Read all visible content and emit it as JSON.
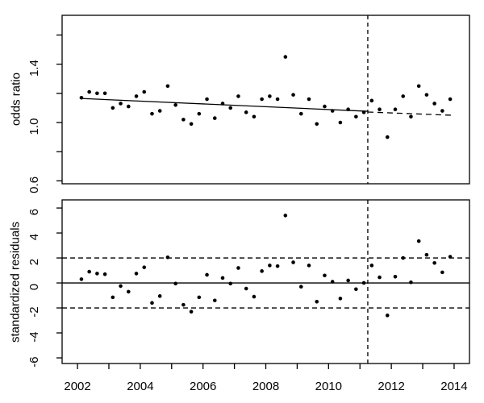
{
  "colors": {
    "foreground": "#000000",
    "background": "#ffffff"
  },
  "chart_data": [
    {
      "type": "scatter",
      "panel": "top",
      "title": "",
      "xlabel": "",
      "ylabel": "odds ratio",
      "xlim": [
        2001.51,
        2014.49
      ],
      "ylim": [
        0.58,
        1.735
      ],
      "grid": false,
      "point_style": "filled-black-dot",
      "x": [
        2002.125,
        2002.375,
        2002.625,
        2002.875,
        2003.125,
        2003.375,
        2003.625,
        2003.875,
        2004.125,
        2004.375,
        2004.625,
        2004.875,
        2005.125,
        2005.375,
        2005.625,
        2005.875,
        2006.125,
        2006.375,
        2006.625,
        2006.875,
        2007.125,
        2007.375,
        2007.625,
        2007.875,
        2008.125,
        2008.375,
        2008.625,
        2008.875,
        2009.125,
        2009.375,
        2009.625,
        2009.875,
        2010.125,
        2010.375,
        2010.625,
        2010.875,
        2011.125,
        2011.375,
        2011.625,
        2011.875,
        2012.125,
        2012.375,
        2012.625,
        2012.875,
        2013.125,
        2013.375,
        2013.625,
        2013.875
      ],
      "y": [
        1.17,
        1.21,
        1.2,
        1.2,
        1.1,
        1.13,
        1.11,
        1.18,
        1.21,
        1.06,
        1.08,
        1.25,
        1.12,
        1.02,
        0.99,
        1.06,
        1.16,
        1.03,
        1.13,
        1.1,
        1.18,
        1.07,
        1.04,
        1.16,
        1.18,
        1.16,
        1.45,
        1.19,
        1.06,
        1.16,
        0.99,
        1.11,
        1.08,
        1.0,
        1.09,
        1.04,
        1.07,
        1.15,
        1.09,
        0.9,
        1.09,
        1.18,
        1.04,
        1.25,
        1.19,
        1.13,
        1.08,
        1.16
      ],
      "yticks": [
        {
          "v": 0.6,
          "label": "0.6"
        },
        {
          "v": 0.8,
          "label": ""
        },
        {
          "v": 1.0,
          "label": "1.0"
        },
        {
          "v": 1.2,
          "label": ""
        },
        {
          "v": 1.4,
          "label": "1.4"
        },
        {
          "v": 1.6,
          "label": ""
        }
      ],
      "trend_solid": {
        "x": [
          2002.1,
          2011.25
        ],
        "y": [
          1.165,
          1.077
        ]
      },
      "trend_dashed": {
        "x": [
          2011.25,
          2013.9
        ],
        "y": [
          1.072,
          1.05
        ]
      },
      "vline_x": 2011.25
    },
    {
      "type": "scatter",
      "panel": "bottom",
      "title": "",
      "xlabel": "",
      "ylabel": "standardized residuals",
      "xlim": [
        2001.51,
        2014.49
      ],
      "ylim": [
        -6.45,
        6.65
      ],
      "grid": false,
      "point_style": "filled-black-dot",
      "x": [
        2002.125,
        2002.375,
        2002.625,
        2002.875,
        2003.125,
        2003.375,
        2003.625,
        2003.875,
        2004.125,
        2004.375,
        2004.625,
        2004.875,
        2005.125,
        2005.375,
        2005.625,
        2005.875,
        2006.125,
        2006.375,
        2006.625,
        2006.875,
        2007.125,
        2007.375,
        2007.625,
        2007.875,
        2008.125,
        2008.375,
        2008.625,
        2008.875,
        2009.125,
        2009.375,
        2009.625,
        2009.875,
        2010.125,
        2010.375,
        2010.625,
        2010.875,
        2011.125,
        2011.375,
        2011.625,
        2011.875,
        2012.125,
        2012.375,
        2012.625,
        2012.875,
        2013.125,
        2013.375,
        2013.625,
        2013.875
      ],
      "y": [
        0.3,
        0.9,
        0.75,
        0.7,
        -1.15,
        -0.25,
        -0.7,
        0.75,
        1.25,
        -1.6,
        -1.05,
        2.05,
        -0.05,
        -1.75,
        -2.3,
        -1.15,
        0.65,
        -1.4,
        0.4,
        -0.05,
        1.2,
        -0.45,
        -1.1,
        0.95,
        1.4,
        1.35,
        5.4,
        1.65,
        -0.3,
        1.4,
        -1.5,
        0.6,
        0.1,
        -1.25,
        0.2,
        -0.5,
        0.0,
        1.4,
        0.45,
        -2.6,
        0.5,
        2.0,
        0.05,
        3.35,
        2.25,
        1.6,
        0.85,
        2.1
      ],
      "yticks": [
        {
          "v": -6,
          "label": "-6"
        },
        {
          "v": -4,
          "label": "-4"
        },
        {
          "v": -2,
          "label": "-2"
        },
        {
          "v": 0,
          "label": "0"
        },
        {
          "v": 2,
          "label": "2"
        },
        {
          "v": 4,
          "label": "4"
        },
        {
          "v": 6,
          "label": "6"
        }
      ],
      "hlines_solid": [
        0
      ],
      "hlines_dashed": [
        2,
        -2
      ],
      "vline_x": 2011.25
    }
  ],
  "xaxis": {
    "ticks": [
      {
        "v": 2002,
        "label": "2002"
      },
      {
        "v": 2003,
        "label": ""
      },
      {
        "v": 2004,
        "label": "2004"
      },
      {
        "v": 2005,
        "label": ""
      },
      {
        "v": 2006,
        "label": "2006"
      },
      {
        "v": 2007,
        "label": ""
      },
      {
        "v": 2008,
        "label": "2008"
      },
      {
        "v": 2009,
        "label": ""
      },
      {
        "v": 2010,
        "label": "2010"
      },
      {
        "v": 2011,
        "label": ""
      },
      {
        "v": 2012,
        "label": "2012"
      },
      {
        "v": 2013,
        "label": ""
      },
      {
        "v": 2014,
        "label": "2014"
      }
    ]
  }
}
